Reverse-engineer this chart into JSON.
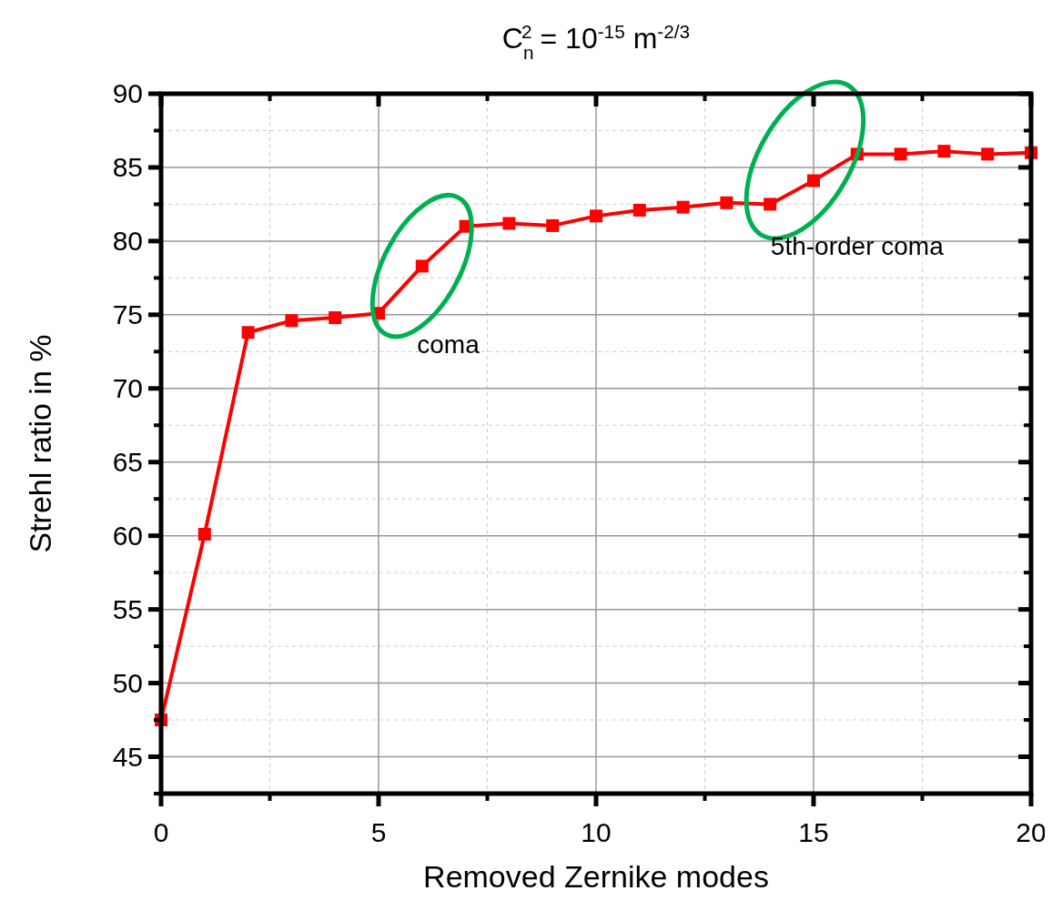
{
  "chart_data": {
    "type": "line",
    "title": "C$_{n}$$^{2}$ = 10$^{-15}$ m$^{-2/3}$",
    "xlabel": "Removed Zernike modes",
    "ylabel": "Strehl ratio in %",
    "x": [
      0,
      1,
      2,
      3,
      4,
      5,
      6,
      7,
      8,
      9,
      10,
      11,
      12,
      13,
      14,
      15,
      16,
      17,
      18,
      19,
      20
    ],
    "series": [
      {
        "color": "#ff0000",
        "values": [
          47.5,
          60.1,
          73.8,
          74.6,
          74.8,
          75.1,
          78.3,
          81.0,
          81.2,
          81.05,
          81.7,
          82.1,
          82.3,
          82.6,
          82.5,
          84.1,
          85.9,
          85.9,
          86.1,
          85.9,
          86.0
        ]
      }
    ],
    "xlim": [
      0,
      20
    ],
    "xticks": [
      0,
      5,
      10,
      15,
      20
    ],
    "ylim": [
      42.5,
      90
    ],
    "yticks": [
      45,
      50,
      55,
      60,
      65,
      70,
      75,
      80,
      85,
      90
    ],
    "grid": true,
    "marker": "square",
    "line_style": "solid",
    "annotations": [
      "coma",
      "5th-order coma"
    ]
  }
}
